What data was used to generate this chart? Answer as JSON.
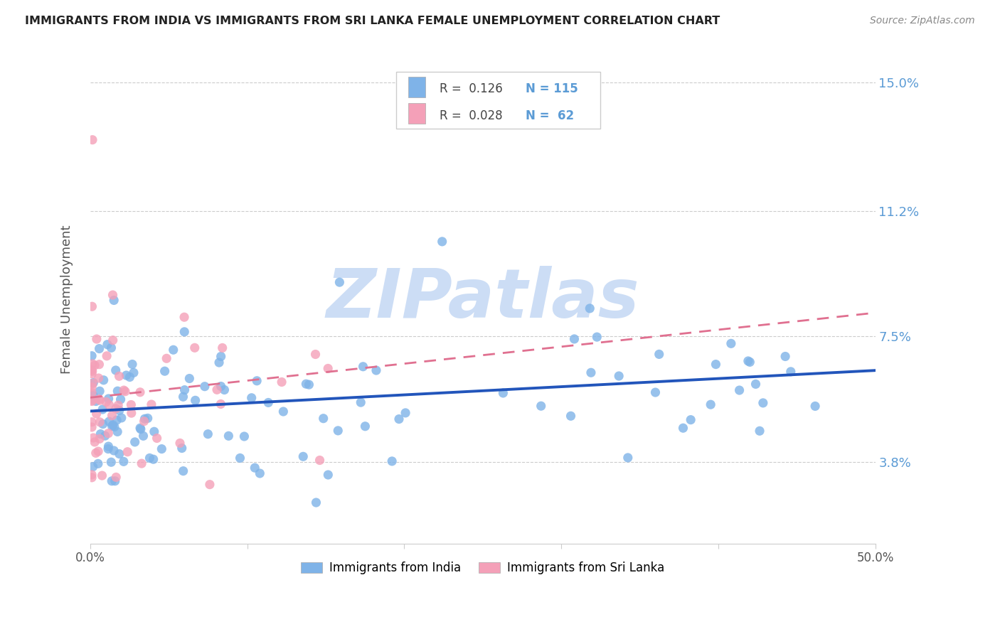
{
  "title": "IMMIGRANTS FROM INDIA VS IMMIGRANTS FROM SRI LANKA FEMALE UNEMPLOYMENT CORRELATION CHART",
  "source": "Source: ZipAtlas.com",
  "ylabel": "Female Unemployment",
  "xlim": [
    0.0,
    0.5
  ],
  "ylim": [
    0.014,
    0.158
  ],
  "xtick_positions": [
    0.0,
    0.1,
    0.2,
    0.3,
    0.4,
    0.5
  ],
  "xtick_labels_visible": [
    "0.0%",
    "",
    "",
    "",
    "",
    "50.0%"
  ],
  "ytick_values": [
    0.038,
    0.075,
    0.112,
    0.15
  ],
  "ytick_labels": [
    "3.8%",
    "7.5%",
    "11.2%",
    "15.0%"
  ],
  "india_color": "#7fb3e8",
  "srilanka_color": "#f4a0b8",
  "trendline_india_color": "#2255bb",
  "trendline_srilanka_color": "#e07090",
  "watermark": "ZIPatlas",
  "watermark_color": "#ccddf5",
  "grid_color": "#cccccc",
  "title_color": "#222222",
  "ylabel_color": "#555555",
  "source_color": "#888888",
  "ytick_label_color": "#5b9bd5",
  "xtick_label_color": "#555555",
  "legend_label_india": "Immigrants from India",
  "legend_label_srilanka": "Immigrants from Sri Lanka",
  "stats_R_india": "R =  0.126",
  "stats_N_india": "N = 115",
  "stats_R_srilanka": "R =  0.028",
  "stats_N_srilanka": "N =  62"
}
